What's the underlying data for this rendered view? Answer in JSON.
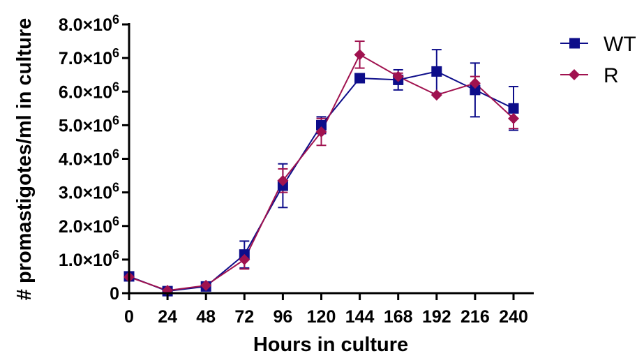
{
  "chart_data": {
    "type": "line",
    "xlabel": "Hours in culture",
    "ylabel": "# promastigotes/ml in culture",
    "x": [
      0,
      24,
      48,
      72,
      96,
      120,
      144,
      168,
      192,
      216,
      240
    ],
    "x_tick_labels": [
      "0",
      "24",
      "48",
      "72",
      "96",
      "120",
      "144",
      "168",
      "192",
      "216",
      "240"
    ],
    "xlim": [
      0,
      240
    ],
    "ylim": [
      0,
      8000000
    ],
    "y_ticks": [
      {
        "value": 0,
        "mantissa": "0",
        "exp": ""
      },
      {
        "value": 1000000,
        "mantissa": "1.0×10",
        "exp": "6"
      },
      {
        "value": 2000000,
        "mantissa": "2.0×10",
        "exp": "6"
      },
      {
        "value": 3000000,
        "mantissa": "3.0×10",
        "exp": "6"
      },
      {
        "value": 4000000,
        "mantissa": "4.0×10",
        "exp": "6"
      },
      {
        "value": 5000000,
        "mantissa": "5.0×10",
        "exp": "6"
      },
      {
        "value": 6000000,
        "mantissa": "6.0×10",
        "exp": "6"
      },
      {
        "value": 7000000,
        "mantissa": "7.0×10",
        "exp": "6"
      },
      {
        "value": 8000000,
        "mantissa": "8.0×10",
        "exp": "6"
      }
    ],
    "grid": false,
    "legend_position": "top-right",
    "series": [
      {
        "name": "WT",
        "marker": "square",
        "color": "#0d0d8a",
        "values": [
          500000,
          60000,
          200000,
          1150000,
          3200000,
          5000000,
          6400000,
          6350000,
          6600000,
          6050000,
          5500000
        ],
        "error": [
          50000,
          40000,
          50000,
          400000,
          650000,
          250000,
          0,
          300000,
          650000,
          800000,
          650000
        ]
      },
      {
        "name": "R",
        "marker": "diamond",
        "color": "#a0124f",
        "values": [
          480000,
          80000,
          230000,
          1000000,
          3350000,
          4800000,
          7100000,
          6450000,
          5900000,
          6250000,
          5200000
        ],
        "error": [
          40000,
          30000,
          40000,
          280000,
          350000,
          400000,
          400000,
          100000,
          0,
          200000,
          300000
        ]
      }
    ]
  }
}
